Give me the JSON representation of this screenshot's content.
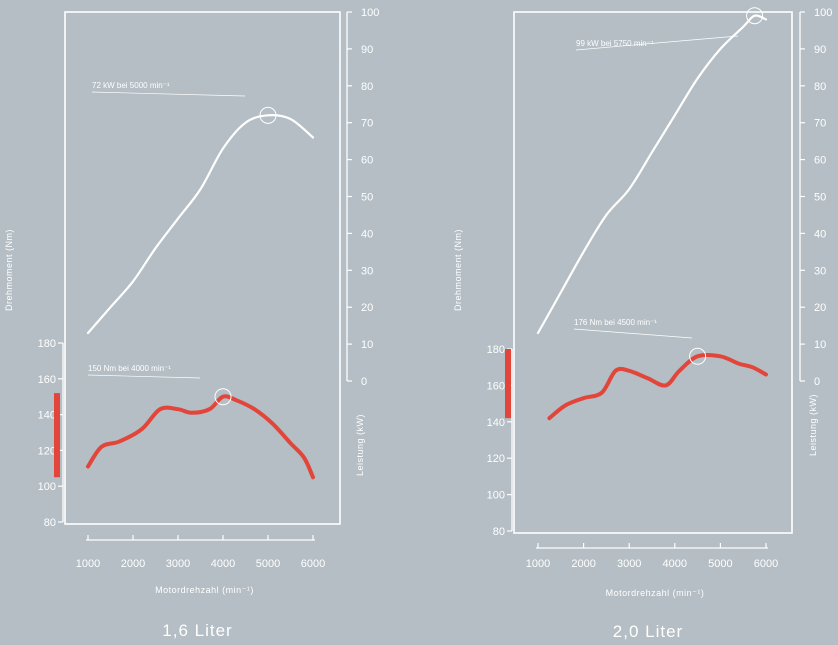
{
  "chart_data": [
    {
      "type": "line",
      "caption": "1,6 Liter",
      "xlabel": "Motordrehzahl (min⁻¹)",
      "ylabel_left": "Drehmoment (Nm)",
      "ylabel_right": "Leistung (kW)",
      "x_ticks": [
        1000,
        2000,
        3000,
        4000,
        5000,
        6000
      ],
      "left_ticks": [
        80,
        100,
        120,
        140,
        160,
        180
      ],
      "right_ticks": [
        0,
        10,
        20,
        30,
        40,
        50,
        60,
        70,
        80,
        90,
        100
      ],
      "xlim": [
        1000,
        6000
      ],
      "torque_axis_range": [
        80,
        180
      ],
      "power_axis_range": [
        0,
        100
      ],
      "torque_band": [
        105,
        152
      ],
      "series": [
        {
          "kind": "power",
          "color": "#ffffff",
          "x": [
            1000,
            1500,
            2000,
            2500,
            3000,
            3500,
            4000,
            4500,
            5000,
            5500,
            6000
          ],
          "y": [
            13,
            20,
            27,
            36,
            44,
            52,
            63,
            70,
            72,
            71,
            66
          ]
        },
        {
          "kind": "torque",
          "color": "#e2453a",
          "x": [
            1000,
            1300,
            1700,
            2200,
            2600,
            3000,
            3300,
            3700,
            4000,
            4300,
            4700,
            5100,
            5500,
            5800,
            6000
          ],
          "y": [
            111,
            122,
            125,
            132,
            143,
            143,
            141,
            143,
            150,
            148,
            143,
            135,
            124,
            116,
            105
          ]
        }
      ],
      "annotations": [
        {
          "kind": "power",
          "text": "72 kW bei 5000 min⁻¹",
          "x": 5000,
          "y": 72
        },
        {
          "kind": "torque",
          "text": "150 Nm bei 4000 min⁻¹",
          "x": 4000,
          "y": 150
        }
      ]
    },
    {
      "type": "line",
      "caption": "2,0 Liter",
      "xlabel": "Motordrehzahl (min⁻¹)",
      "ylabel_left": "Drehmoment (Nm)",
      "ylabel_right": "Leistung (kW)",
      "x_ticks": [
        1000,
        2000,
        3000,
        4000,
        5000,
        6000
      ],
      "left_ticks": [
        80,
        100,
        120,
        140,
        160,
        180
      ],
      "right_ticks": [
        0,
        10,
        20,
        30,
        40,
        50,
        60,
        70,
        80,
        90,
        100
      ],
      "xlim": [
        1000,
        6000
      ],
      "torque_axis_range": [
        80,
        180
      ],
      "power_axis_range": [
        0,
        100
      ],
      "torque_band": [
        142,
        180
      ],
      "series": [
        {
          "kind": "power",
          "color": "#ffffff",
          "x": [
            1000,
            1500,
            2000,
            2500,
            3000,
            3500,
            4000,
            4500,
            5000,
            5500,
            5750,
            6000
          ],
          "y": [
            13,
            24,
            35,
            45,
            52,
            62,
            72,
            82,
            90,
            96,
            99,
            98
          ]
        },
        {
          "kind": "torque",
          "color": "#e2453a",
          "x": [
            1250,
            1600,
            2000,
            2400,
            2700,
            3000,
            3400,
            3800,
            4100,
            4500,
            5000,
            5400,
            5700,
            6000
          ],
          "y": [
            142,
            149,
            153,
            156,
            168,
            168,
            164,
            160,
            168,
            176,
            176,
            172,
            170,
            166
          ]
        }
      ],
      "annotations": [
        {
          "kind": "power",
          "text": "99 kW bei 5750 min⁻¹",
          "x": 5750,
          "y": 99
        },
        {
          "kind": "torque",
          "text": "176 Nm bei 4500 min⁻¹",
          "x": 4500,
          "y": 176
        }
      ]
    }
  ]
}
